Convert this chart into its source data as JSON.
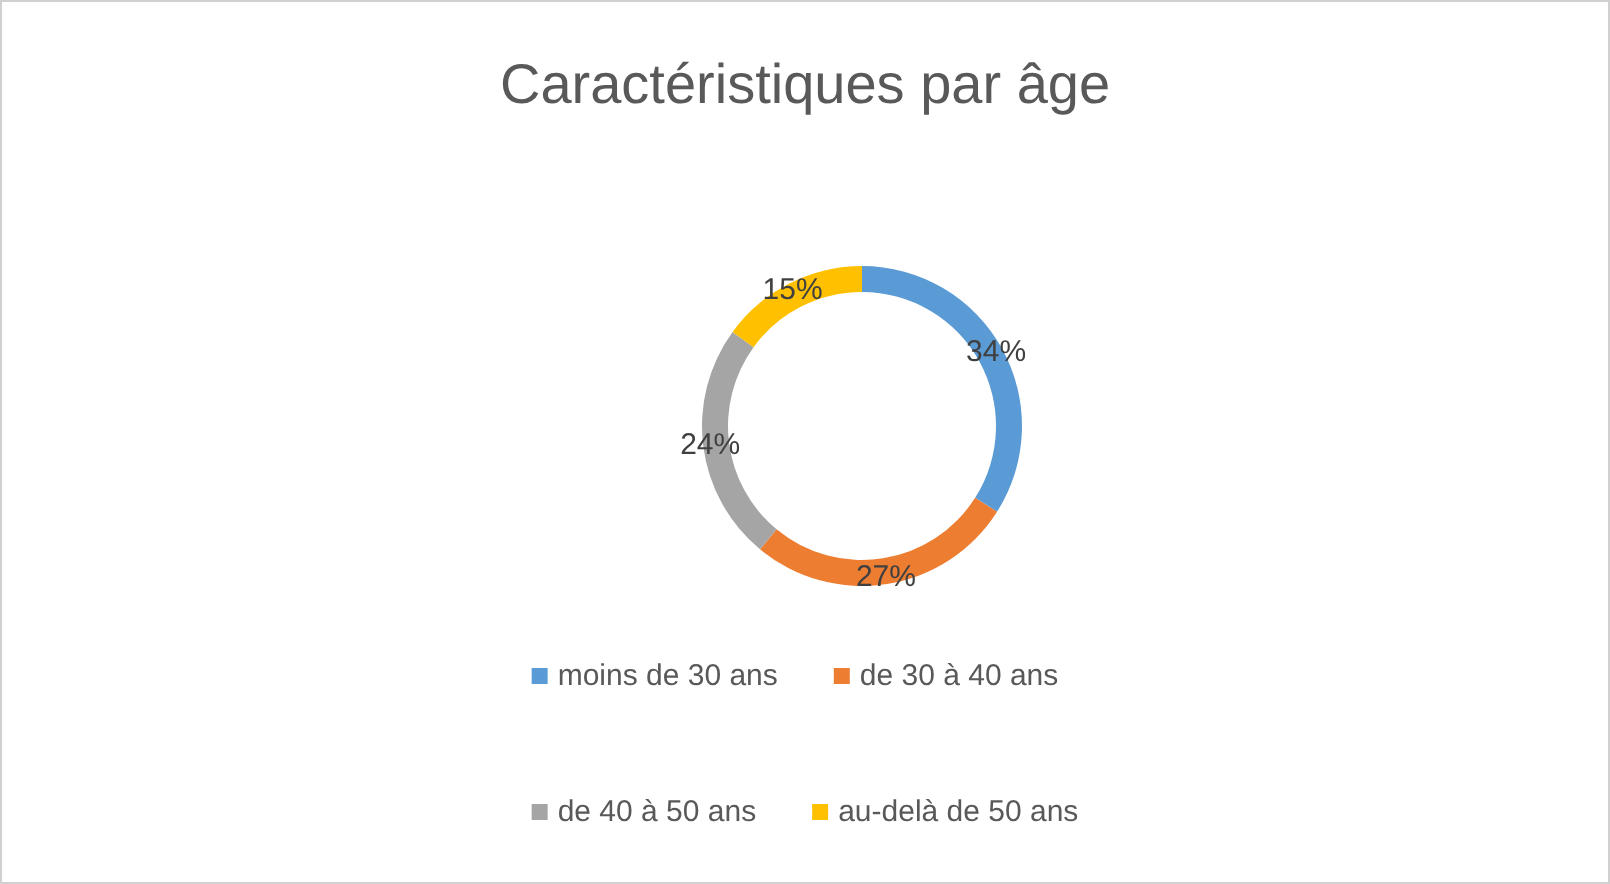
{
  "chart_data": {
    "type": "donut",
    "title": "Caractéristiques par âge",
    "categories": [
      "moins de 30 ans",
      "de 30 à 40 ans",
      "de 40 à 50 ans",
      "au-delà de 50 ans"
    ],
    "values": [
      34,
      27,
      24,
      15
    ],
    "colors": [
      "#5b9bd5",
      "#ed7d31",
      "#a5a5a5",
      "#ffc000"
    ],
    "value_labels": [
      "34%",
      "27%",
      "24%",
      "15%"
    ],
    "legend": "bottom"
  }
}
